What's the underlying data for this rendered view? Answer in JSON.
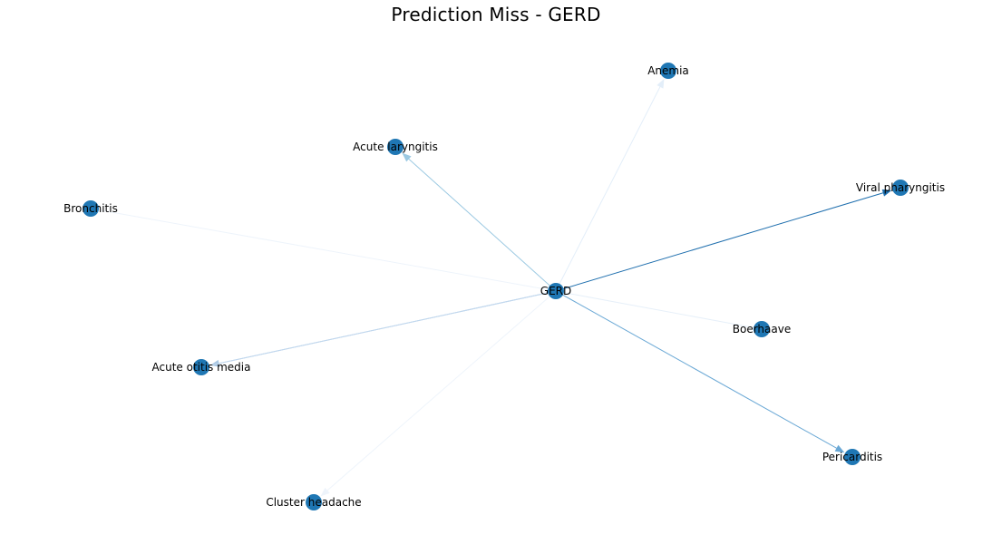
{
  "title": "Prediction Miss - GERD",
  "graph": {
    "center": "GERD",
    "nodes": [
      {
        "id": "GERD",
        "label": "GERD"
      },
      {
        "id": "Anemia",
        "label": "Anemia"
      },
      {
        "id": "Acute laryngitis",
        "label": "Acute laryngitis"
      },
      {
        "id": "Viral pharyngitis",
        "label": "Viral pharyngitis"
      },
      {
        "id": "Bronchitis",
        "label": "Bronchitis"
      },
      {
        "id": "Boerhaave",
        "label": "Boerhaave"
      },
      {
        "id": "Acute otitis media",
        "label": "Acute otitis media"
      },
      {
        "id": "Pericarditis",
        "label": "Pericarditis"
      },
      {
        "id": "Cluster headache",
        "label": "Cluster headache"
      }
    ],
    "edges": [
      {
        "source": "GERD",
        "target": "Anemia",
        "color": "#e3eef9",
        "arrow": true
      },
      {
        "source": "GERD",
        "target": "Acute laryngitis",
        "color": "#9cc9e2",
        "arrow": true
      },
      {
        "source": "GERD",
        "target": "Viral pharyngitis",
        "color": "#1f6fae",
        "arrow": true
      },
      {
        "source": "Bronchitis",
        "target": "GERD",
        "color": "#eef4fb",
        "arrow": false
      },
      {
        "source": "Boerhaave",
        "target": "GERD",
        "color": "#e7f0f9",
        "arrow": false
      },
      {
        "source": "GERD",
        "target": "Acute otitis media",
        "color": "#a9c7e3",
        "arrow": true
      },
      {
        "source": "Acute otitis media",
        "target": "GERD",
        "color": "#c2d8ee",
        "arrow": false
      },
      {
        "source": "GERD",
        "target": "Pericarditis",
        "color": "#6aa8d5",
        "arrow": true
      },
      {
        "source": "GERD",
        "target": "Cluster headache",
        "color": "#eef4fb",
        "arrow": true
      }
    ],
    "node_color": "#1f77b4"
  }
}
